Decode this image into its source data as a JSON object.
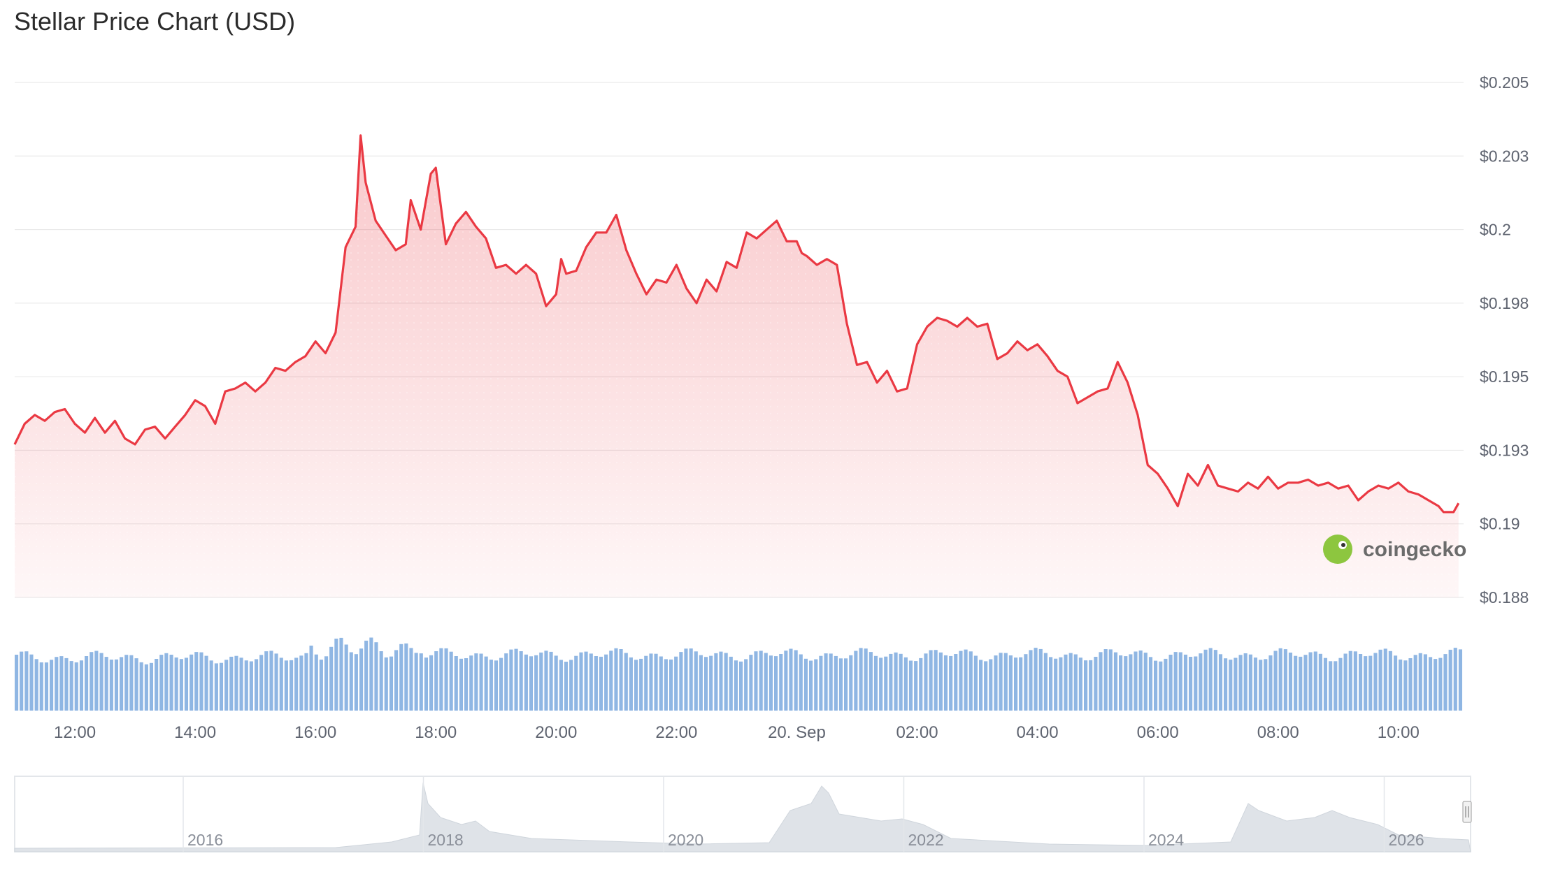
{
  "title": "Stellar Price Chart (USD)",
  "watermark": "coingecko",
  "colors": {
    "line": "#ea3943",
    "volume": "#8fb6e3",
    "grid": "#e6e6e6",
    "navigator": "#d8dde3"
  },
  "chart_data": {
    "type": "line",
    "title": "Stellar Price Chart (USD)",
    "x_range": [
      "2025-09-19T11:00",
      "2025-09-20T11:05"
    ],
    "ylim": [
      0.188,
      0.205
    ],
    "y_ticks": [
      {
        "value": 0.205,
        "label": "$0.205"
      },
      {
        "value": 0.2025,
        "label": "$0.203"
      },
      {
        "value": 0.2,
        "label": "$0.2"
      },
      {
        "value": 0.1975,
        "label": "$0.198"
      },
      {
        "value": 0.195,
        "label": "$0.195"
      },
      {
        "value": 0.1925,
        "label": "$0.193"
      },
      {
        "value": 0.19,
        "label": "$0.19"
      },
      {
        "value": 0.1875,
        "label": "$0.188"
      }
    ],
    "x_ticks": [
      {
        "time": "12:00",
        "label": "12:00"
      },
      {
        "time": "14:00",
        "label": "14:00"
      },
      {
        "time": "16:00",
        "label": "16:00"
      },
      {
        "time": "18:00",
        "label": "18:00"
      },
      {
        "time": "20:00",
        "label": "20:00"
      },
      {
        "time": "22:00",
        "label": "22:00"
      },
      {
        "time": "24:00",
        "label": "20. Sep"
      },
      {
        "time": "26:00",
        "label": "02:00"
      },
      {
        "time": "28:00",
        "label": "04:00"
      },
      {
        "time": "30:00",
        "label": "06:00"
      },
      {
        "time": "32:00",
        "label": "08:00"
      },
      {
        "time": "34:00",
        "label": "10:00"
      }
    ],
    "series": [
      {
        "points": [
          [
            "11:00",
            0.1927
          ],
          [
            "11:10",
            0.1934
          ],
          [
            "11:20",
            0.1937
          ],
          [
            "11:30",
            0.1935
          ],
          [
            "11:40",
            0.1938
          ],
          [
            "11:50",
            0.1939
          ],
          [
            "12:00",
            0.1934
          ],
          [
            "12:10",
            0.1931
          ],
          [
            "12:20",
            0.1936
          ],
          [
            "12:30",
            0.1931
          ],
          [
            "12:40",
            0.1935
          ],
          [
            "12:50",
            0.1929
          ],
          [
            "13:00",
            0.1927
          ],
          [
            "13:10",
            0.1932
          ],
          [
            "13:20",
            0.1933
          ],
          [
            "13:30",
            0.1929
          ],
          [
            "13:40",
            0.1933
          ],
          [
            "13:50",
            0.1937
          ],
          [
            "14:00",
            0.1942
          ],
          [
            "14:10",
            0.194
          ],
          [
            "14:20",
            0.1934
          ],
          [
            "14:30",
            0.1945
          ],
          [
            "14:40",
            0.1946
          ],
          [
            "14:50",
            0.1948
          ],
          [
            "15:00",
            0.1945
          ],
          [
            "15:10",
            0.1948
          ],
          [
            "15:20",
            0.1953
          ],
          [
            "15:30",
            0.1952
          ],
          [
            "15:40",
            0.1955
          ],
          [
            "15:50",
            0.1957
          ],
          [
            "16:00",
            0.1962
          ],
          [
            "16:10",
            0.1958
          ],
          [
            "16:20",
            0.1965
          ],
          [
            "16:30",
            0.1994
          ],
          [
            "16:40",
            0.2001
          ],
          [
            "16:45",
            0.2032
          ],
          [
            "16:50",
            0.2016
          ],
          [
            "17:00",
            0.2003
          ],
          [
            "17:10",
            0.1998
          ],
          [
            "17:20",
            0.1993
          ],
          [
            "17:30",
            0.1995
          ],
          [
            "17:35",
            0.201
          ],
          [
            "17:45",
            0.2
          ],
          [
            "17:55",
            0.2019
          ],
          [
            "18:00",
            0.2021
          ],
          [
            "18:10",
            0.1995
          ],
          [
            "18:20",
            0.2002
          ],
          [
            "18:30",
            0.2006
          ],
          [
            "18:40",
            0.2001
          ],
          [
            "18:50",
            0.1997
          ],
          [
            "19:00",
            0.1987
          ],
          [
            "19:10",
            0.1988
          ],
          [
            "19:20",
            0.1985
          ],
          [
            "19:30",
            0.1988
          ],
          [
            "19:40",
            0.1985
          ],
          [
            "19:50",
            0.1974
          ],
          [
            "20:00",
            0.1978
          ],
          [
            "20:05",
            0.199
          ],
          [
            "20:10",
            0.1985
          ],
          [
            "20:20",
            0.1986
          ],
          [
            "20:30",
            0.1994
          ],
          [
            "20:40",
            0.1999
          ],
          [
            "20:50",
            0.1999
          ],
          [
            "21:00",
            0.2005
          ],
          [
            "21:10",
            0.1993
          ],
          [
            "21:20",
            0.1985
          ],
          [
            "21:30",
            0.1978
          ],
          [
            "21:40",
            0.1983
          ],
          [
            "21:50",
            0.1982
          ],
          [
            "22:00",
            0.1988
          ],
          [
            "22:10",
            0.198
          ],
          [
            "22:20",
            0.1975
          ],
          [
            "22:30",
            0.1983
          ],
          [
            "22:40",
            0.1979
          ],
          [
            "22:50",
            0.1989
          ],
          [
            "23:00",
            0.1987
          ],
          [
            "23:10",
            0.1999
          ],
          [
            "23:20",
            0.1997
          ],
          [
            "23:30",
            0.2
          ],
          [
            "23:40",
            0.2003
          ],
          [
            "23:50",
            0.1996
          ],
          [
            "24:00",
            0.1996
          ],
          [
            "24:05",
            0.1992
          ],
          [
            "24:10",
            0.1991
          ],
          [
            "24:20",
            0.1988
          ],
          [
            "24:30",
            0.199
          ],
          [
            "24:40",
            0.1988
          ],
          [
            "24:50",
            0.1968
          ],
          [
            "25:00",
            0.1954
          ],
          [
            "25:10",
            0.1955
          ],
          [
            "25:20",
            0.1948
          ],
          [
            "25:30",
            0.1952
          ],
          [
            "25:40",
            0.1945
          ],
          [
            "25:50",
            0.1946
          ],
          [
            "26:00",
            0.1961
          ],
          [
            "26:10",
            0.1967
          ],
          [
            "26:20",
            0.197
          ],
          [
            "26:30",
            0.1969
          ],
          [
            "26:40",
            0.1967
          ],
          [
            "26:50",
            0.197
          ],
          [
            "27:00",
            0.1967
          ],
          [
            "27:10",
            0.1968
          ],
          [
            "27:20",
            0.1956
          ],
          [
            "27:30",
            0.1958
          ],
          [
            "27:40",
            0.1962
          ],
          [
            "27:50",
            0.1959
          ],
          [
            "28:00",
            0.1961
          ],
          [
            "28:10",
            0.1957
          ],
          [
            "28:20",
            0.1952
          ],
          [
            "28:30",
            0.195
          ],
          [
            "28:40",
            0.1941
          ],
          [
            "28:50",
            0.1943
          ],
          [
            "29:00",
            0.1945
          ],
          [
            "29:10",
            0.1946
          ],
          [
            "29:20",
            0.1955
          ],
          [
            "29:30",
            0.1948
          ],
          [
            "29:40",
            0.1937
          ],
          [
            "29:50",
            0.192
          ],
          [
            "30:00",
            0.1917
          ],
          [
            "30:10",
            0.1912
          ],
          [
            "30:20",
            0.1906
          ],
          [
            "30:30",
            0.1917
          ],
          [
            "30:40",
            0.1913
          ],
          [
            "30:50",
            0.192
          ],
          [
            "31:00",
            0.1913
          ],
          [
            "31:10",
            0.1912
          ],
          [
            "31:20",
            0.1911
          ],
          [
            "31:30",
            0.1914
          ],
          [
            "31:40",
            0.1912
          ],
          [
            "31:50",
            0.1916
          ],
          [
            "32:00",
            0.1912
          ],
          [
            "32:10",
            0.1914
          ],
          [
            "32:20",
            0.1914
          ],
          [
            "32:30",
            0.1915
          ],
          [
            "32:40",
            0.1913
          ],
          [
            "32:50",
            0.1914
          ],
          [
            "33:00",
            0.1912
          ],
          [
            "33:10",
            0.1913
          ],
          [
            "33:20",
            0.1908
          ],
          [
            "33:30",
            0.1911
          ],
          [
            "33:40",
            0.1913
          ],
          [
            "33:50",
            0.1912
          ],
          [
            "34:00",
            0.1914
          ],
          [
            "34:10",
            0.1911
          ],
          [
            "34:20",
            0.191
          ],
          [
            "34:30",
            0.1908
          ],
          [
            "34:40",
            0.1906
          ],
          [
            "34:45",
            0.1904
          ],
          [
            "34:55",
            0.1904
          ],
          [
            "35:00",
            0.1907
          ]
        ]
      }
    ],
    "grid": true,
    "legend": "none",
    "volume_shown": true,
    "navigator": {
      "labels": [
        "2016",
        "2018",
        "2020",
        "2022",
        "2024",
        "2026"
      ]
    }
  }
}
